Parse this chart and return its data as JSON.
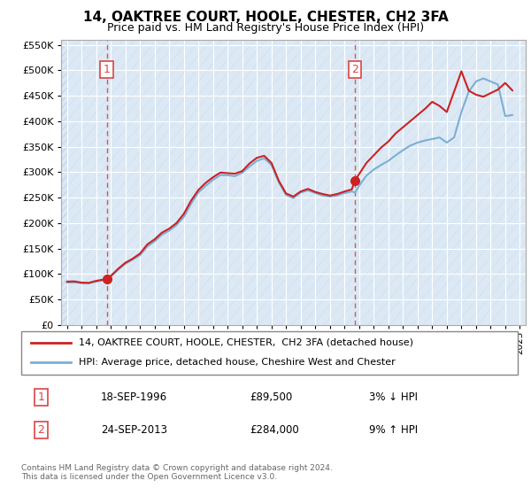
{
  "title": "14, OAKTREE COURT, HOOLE, CHESTER, CH2 3FA",
  "subtitle": "Price paid vs. HM Land Registry's House Price Index (HPI)",
  "legend_line1": "14, OAKTREE COURT, HOOLE, CHESTER,  CH2 3FA (detached house)",
  "legend_line2": "HPI: Average price, detached house, Cheshire West and Chester",
  "sale1_date": "18-SEP-1996",
  "sale1_price": "£89,500",
  "sale1_hpi": "3% ↓ HPI",
  "sale2_date": "24-SEP-2013",
  "sale2_price": "£284,000",
  "sale2_hpi": "9% ↑ HPI",
  "footnote": "Contains HM Land Registry data © Crown copyright and database right 2024.\nThis data is licensed under the Open Government Licence v3.0.",
  "sale1_year": 1996.72,
  "sale1_value": 89500,
  "sale2_year": 2013.72,
  "sale2_value": 284000,
  "hpi_line_color": "#7bafd4",
  "price_line_color": "#cc2222",
  "dashed_line_color": "#dd4444",
  "marker_color": "#cc2222",
  "bg_color": "#dce9f5",
  "hatch_color": "#c5d8ec",
  "ylim_min": 0,
  "ylim_max": 560000,
  "xlim_min": 1993.6,
  "xlim_max": 2025.4,
  "hpi_years": [
    1994.0,
    1994.5,
    1995.0,
    1995.5,
    1996.0,
    1996.5,
    1997.0,
    1997.5,
    1998.0,
    1998.5,
    1999.0,
    1999.5,
    2000.0,
    2000.5,
    2001.0,
    2001.5,
    2002.0,
    2002.5,
    2003.0,
    2003.5,
    2004.0,
    2004.5,
    2005.0,
    2005.5,
    2006.0,
    2006.5,
    2007.0,
    2007.5,
    2008.0,
    2008.5,
    2009.0,
    2009.5,
    2010.0,
    2010.5,
    2011.0,
    2011.5,
    2012.0,
    2012.5,
    2013.0,
    2013.5,
    2013.72,
    2014.0,
    2014.5,
    2015.0,
    2015.5,
    2016.0,
    2016.5,
    2017.0,
    2017.5,
    2018.0,
    2018.5,
    2019.0,
    2019.5,
    2020.0,
    2020.5,
    2021.0,
    2021.5,
    2022.0,
    2022.5,
    2023.0,
    2023.5,
    2024.0,
    2024.5
  ],
  "hpi_values": [
    83000,
    83500,
    82000,
    81500,
    85000,
    87500,
    95000,
    108000,
    120000,
    128000,
    137000,
    154000,
    164000,
    177000,
    185000,
    196000,
    212000,
    238000,
    260000,
    273000,
    285000,
    294000,
    294000,
    292000,
    299000,
    311000,
    322000,
    327000,
    314000,
    280000,
    255000,
    249000,
    260000,
    264000,
    259000,
    254000,
    252000,
    254000,
    259000,
    262000,
    260000,
    273000,
    293000,
    305000,
    314000,
    322000,
    333000,
    343000,
    352000,
    358000,
    362000,
    365000,
    368000,
    358000,
    368000,
    418000,
    458000,
    478000,
    484000,
    478000,
    472000,
    410000,
    412000
  ],
  "price_years": [
    1994.0,
    1994.5,
    1995.0,
    1995.5,
    1996.0,
    1996.5,
    1996.72,
    1997.0,
    1997.5,
    1998.0,
    1998.5,
    1999.0,
    1999.5,
    2000.0,
    2000.5,
    2001.0,
    2001.5,
    2002.0,
    2002.5,
    2003.0,
    2003.5,
    2004.0,
    2004.5,
    2005.0,
    2005.5,
    2006.0,
    2006.5,
    2007.0,
    2007.5,
    2008.0,
    2008.5,
    2009.0,
    2009.5,
    2010.0,
    2010.5,
    2011.0,
    2011.5,
    2012.0,
    2012.5,
    2013.0,
    2013.5,
    2013.72,
    2014.0,
    2014.5,
    2015.0,
    2015.5,
    2016.0,
    2016.5,
    2017.0,
    2017.5,
    2018.0,
    2018.5,
    2019.0,
    2019.5,
    2020.0,
    2020.5,
    2021.0,
    2021.5,
    2022.0,
    2022.5,
    2023.0,
    2023.5,
    2024.0,
    2024.5
  ],
  "price_values": [
    85000,
    85500,
    83000,
    82500,
    86500,
    89000,
    89500,
    96000,
    110000,
    122000,
    130000,
    140000,
    158000,
    168000,
    181000,
    189000,
    200000,
    218000,
    244000,
    265000,
    279000,
    290000,
    299000,
    298000,
    297000,
    302000,
    317000,
    328000,
    332000,
    318000,
    283000,
    258000,
    252000,
    262000,
    267000,
    261000,
    257000,
    254000,
    257000,
    262000,
    266000,
    284000,
    296000,
    318000,
    333000,
    348000,
    360000,
    376000,
    388000,
    400000,
    412000,
    424000,
    438000,
    430000,
    418000,
    458000,
    498000,
    460000,
    452000,
    448000,
    455000,
    462000,
    475000,
    460000
  ]
}
